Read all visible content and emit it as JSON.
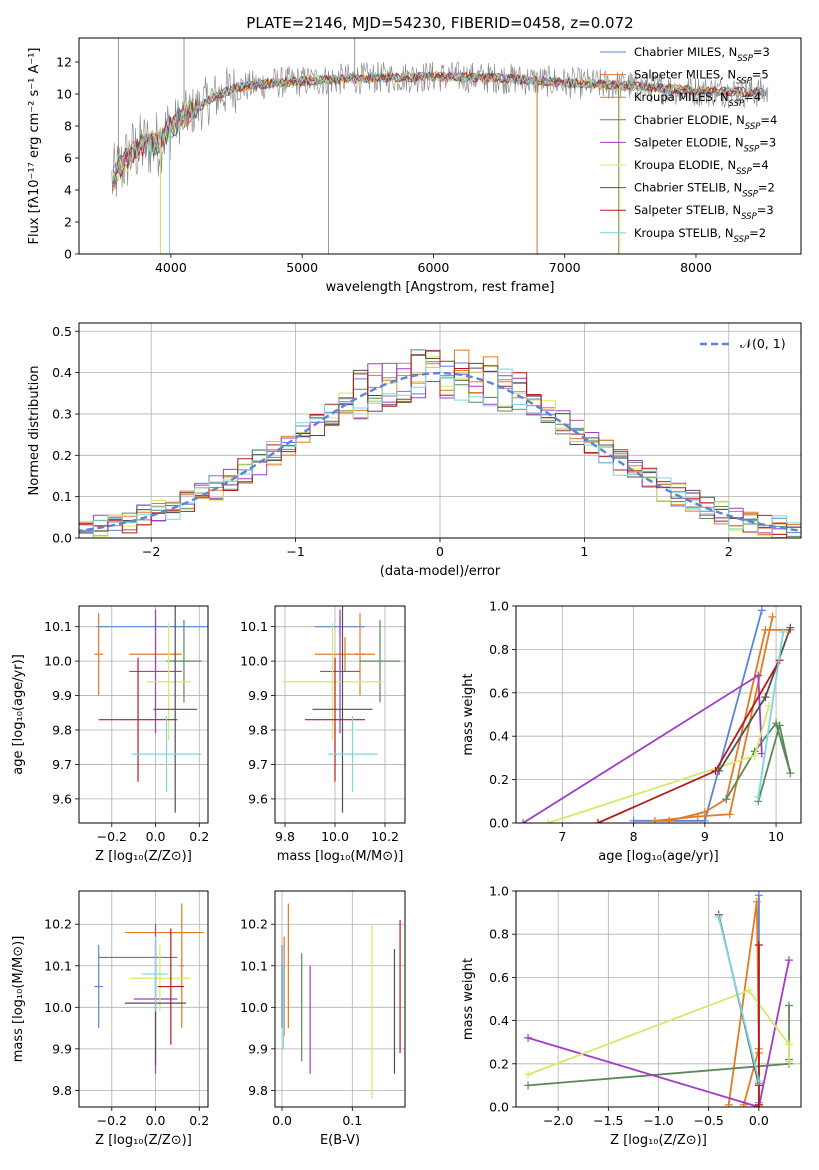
{
  "figure": {
    "title": "PLATE=2146, MJD=54230, FIBERID=0458, z=0.072"
  },
  "colors": {
    "models": [
      "#5b84d8",
      "#e07b24",
      "#e07b24",
      "#5a8a5a",
      "#a43bc6",
      "#d8e86a",
      "#505050",
      "#b61b1b",
      "#7fd6dc"
    ],
    "data_spectrum": "#808080",
    "gaussian": "#5b84d8",
    "grid": "#b0b0b0"
  },
  "chart_data": [
    {
      "id": "spectrum",
      "type": "line",
      "title": "PLATE=2146, MJD=54230, FIBERID=0458, z=0.072",
      "xlabel": "wavelength [Angstrom, rest frame]",
      "ylabel": "Flux [fλ10⁻¹⁷ erg cm⁻² s⁻¹ A⁻¹]",
      "xlim": [
        3300,
        8800
      ],
      "ylim": [
        0,
        13.5
      ],
      "xticks": [
        4000,
        5000,
        6000,
        7000,
        8000
      ],
      "yticks": [
        0,
        2,
        4,
        6,
        8,
        10,
        12
      ],
      "grid": false,
      "legend_position": "top-right",
      "continuum": {
        "x": [
          3550,
          3600,
          3700,
          3800,
          3900,
          4000,
          4100,
          4200,
          4300,
          4500,
          4800,
          5000,
          5500,
          6000,
          6500,
          7000,
          7500,
          8000,
          8500
        ],
        "y": [
          4.5,
          5.2,
          6.3,
          6.8,
          6.9,
          8.0,
          8.6,
          9.1,
          9.7,
          10.4,
          10.7,
          10.8,
          11.0,
          11.1,
          11.0,
          10.7,
          10.5,
          10.2,
          10.1
        ]
      },
      "legend": [
        "Chabrier MILES, N$_{SSP}$=3",
        "Salpeter MILES, N$_{SSP}$=5",
        "Kroupa MILES, N$_{SSP}$=4",
        "Chabrier ELODIE, N$_{SSP}$=4",
        "Salpeter ELODIE, N$_{SSP}$=3",
        "Kroupa ELODIE, N$_{SSP}$=4",
        "Chabrier STELIB, N$_{SSP}$=2",
        "Salpeter STELIB, N$_{SSP}$=3",
        "Kroupa STELIB, N$_{SSP}$=2"
      ]
    },
    {
      "id": "residuals",
      "type": "line",
      "xlabel": "(data-model)/error",
      "ylabel": "Normed distribution",
      "xlim": [
        -2.5,
        2.5
      ],
      "ylim": [
        0,
        0.52
      ],
      "xticks": [
        -2,
        -1,
        0,
        1,
        2
      ],
      "xticklabels": [
        "−2",
        "−1",
        "0",
        "1",
        "2"
      ],
      "yticks": [
        0.0,
        0.1,
        0.2,
        0.3,
        0.4,
        0.5
      ],
      "yticklabels": [
        "0.0",
        "0.1",
        "0.2",
        "0.3",
        "0.4",
        "0.5"
      ],
      "grid": true,
      "legend_position": "top-right",
      "gaussian_label": "𝒩(0, 1)",
      "bin_width": 0.1
    },
    {
      "id": "age_vs_Z",
      "type": "scatter",
      "xlabel": "Z [log₁₀(Z/Z⊙)]",
      "ylabel": "age  [log₁₀(age/yr)]",
      "xlim": [
        -0.35,
        0.24
      ],
      "ylim": [
        9.53,
        10.16
      ],
      "xticks": [
        -0.2,
        0.0,
        0.2
      ],
      "xticklabels": [
        "−0.2",
        "0.0",
        "0.2"
      ],
      "yticks": [
        9.6,
        9.7,
        9.8,
        9.9,
        10.0,
        10.1
      ],
      "yticklabels": [
        "9.6",
        "9.7",
        "9.8",
        "9.9",
        "10.0",
        "10.1"
      ],
      "grid": true,
      "points": [
        {
          "x": 0.0,
          "xerr": 0.27,
          "y": 10.1,
          "yerr": 0.03
        },
        {
          "x": -0.26,
          "xerr": 0.02,
          "y": 10.02,
          "yerr": 0.12
        },
        {
          "x": 0.0,
          "xerr": 0.12,
          "y": 10.02,
          "yerr": 0.05
        },
        {
          "x": 0.13,
          "xerr": 0.08,
          "y": 10.0,
          "yerr": 0.12
        },
        {
          "x": 0.0,
          "xerr": 0.12,
          "y": 9.97,
          "yerr": 0.18
        },
        {
          "x": 0.06,
          "xerr": 0.1,
          "y": 9.94,
          "yerr": 0.17
        },
        {
          "x": 0.09,
          "xerr": 0.1,
          "y": 9.86,
          "yerr": 0.3
        },
        {
          "x": -0.08,
          "xerr": 0.18,
          "y": 9.83,
          "yerr": 0.18
        },
        {
          "x": 0.05,
          "xerr": 0.16,
          "y": 9.73,
          "yerr": 0.11
        }
      ]
    },
    {
      "id": "age_vs_mass",
      "type": "scatter",
      "xlabel": "mass [log₁₀(M/M⊙)]",
      "xlim": [
        9.76,
        10.28
      ],
      "ylim": [
        9.53,
        10.16
      ],
      "xticks": [
        9.8,
        10.0,
        10.2
      ],
      "xticklabels": [
        "9.8",
        "10.0",
        "10.2"
      ],
      "yticks": [
        9.6,
        9.7,
        9.8,
        9.9,
        10.0,
        10.1
      ],
      "yticklabels": [
        "9.6",
        "9.7",
        "9.8",
        "9.9",
        "10.0",
        "10.1"
      ],
      "grid": true,
      "points": [
        {
          "x": 10.02,
          "xerr": 0.1,
          "y": 10.1,
          "yerr": 0.03
        },
        {
          "x": 10.1,
          "xerr": 0.02,
          "y": 10.02,
          "yerr": 0.12
        },
        {
          "x": 10.04,
          "xerr": 0.12,
          "y": 10.02,
          "yerr": 0.05
        },
        {
          "x": 10.18,
          "xerr": 0.08,
          "y": 10.0,
          "yerr": 0.12
        },
        {
          "x": 10.02,
          "xerr": 0.08,
          "y": 9.97,
          "yerr": 0.18
        },
        {
          "x": 9.99,
          "xerr": 0.2,
          "y": 9.94,
          "yerr": 0.17
        },
        {
          "x": 10.03,
          "xerr": 0.12,
          "y": 9.86,
          "yerr": 0.3
        },
        {
          "x": 10.0,
          "xerr": 0.12,
          "y": 9.83,
          "yerr": 0.18
        },
        {
          "x": 10.07,
          "xerr": 0.1,
          "y": 9.73,
          "yerr": 0.11
        }
      ]
    },
    {
      "id": "weight_vs_age",
      "type": "line",
      "xlabel": "age  [log₁₀(age/yr)]",
      "ylabel": "mass weight",
      "xlim": [
        6.35,
        10.35
      ],
      "ylim": [
        0,
        1.0
      ],
      "xticks": [
        7,
        8,
        9,
        10
      ],
      "yticks": [
        0.0,
        0.2,
        0.4,
        0.6,
        0.8,
        1.0
      ],
      "yticklabels": [
        "0.0",
        "0.2",
        "0.4",
        "0.6",
        "0.8",
        "1.0"
      ],
      "grid": true,
      "series": [
        {
          "x": [
            8.0,
            9.0,
            9.8
          ],
          "y": [
            0.01,
            0.01,
            0.98
          ]
        },
        {
          "x": [
            8.3,
            8.9,
            9.35,
            9.95
          ],
          "y": [
            0.01,
            0.03,
            0.04,
            0.95
          ]
        },
        {
          "x": [
            8.5,
            9.0,
            9.3,
            9.85,
            10.2
          ],
          "y": [
            0.01,
            0.05,
            0.11,
            0.89,
            0.89
          ]
        },
        {
          "x": [
            9.3,
            9.7,
            10.0,
            10.2,
            10.05,
            9.75
          ],
          "y": [
            0.11,
            0.33,
            0.46,
            0.23,
            0.45,
            0.1
          ]
        },
        {
          "x": [
            6.45,
            9.75,
            9.8
          ],
          "y": [
            0.0,
            0.68,
            0.32
          ]
        },
        {
          "x": [
            6.8,
            9.7,
            9.9
          ],
          "y": [
            0.0,
            0.31,
            0.54
          ]
        },
        {
          "x": [
            9.2,
            9.85,
            10.2
          ],
          "y": [
            0.24,
            0.58,
            0.9
          ]
        },
        {
          "x": [
            7.5,
            9.15,
            10.05
          ],
          "y": [
            0.0,
            0.24,
            0.75
          ]
        },
        {
          "x": [
            9.75,
            10.1
          ],
          "y": [
            0.12,
            0.88
          ]
        }
      ]
    },
    {
      "id": "mass_vs_Z",
      "type": "scatter",
      "xlabel": "Z [log₁₀(Z/Z⊙)]",
      "ylabel": "mass [log₁₀(M/M⊙)]",
      "xlim": [
        -0.35,
        0.24
      ],
      "ylim": [
        9.76,
        10.28
      ],
      "xticks": [
        -0.2,
        0.0,
        0.2
      ],
      "xticklabels": [
        "−0.2",
        "0.0",
        "0.2"
      ],
      "yticks": [
        9.8,
        9.9,
        10.0,
        10.1,
        10.2
      ],
      "yticklabels": [
        "9.8",
        "9.9",
        "10.0",
        "10.1",
        "10.2"
      ],
      "grid": true,
      "points": [
        {
          "x": -0.26,
          "xerr": 0.02,
          "y": 10.05,
          "yerr": 0.1
        },
        {
          "x": 0.04,
          "xerr": 0.18,
          "y": 10.18,
          "yerr": 0.0
        },
        {
          "x": 0.12,
          "xerr": 0.01,
          "y": 10.1,
          "yerr": 0.15
        },
        {
          "x": -0.08,
          "xerr": 0.18,
          "y": 10.12,
          "yerr": 0.0
        },
        {
          "x": 0.0,
          "xerr": 0.1,
          "y": 10.02,
          "yerr": 0.18
        },
        {
          "x": 0.02,
          "xerr": 0.14,
          "y": 10.07,
          "yerr": 0.08
        },
        {
          "x": 0.0,
          "xerr": 0.14,
          "y": 10.01,
          "yerr": 0.15
        },
        {
          "x": 0.07,
          "xerr": 0.06,
          "y": 10.05,
          "yerr": 0.14
        },
        {
          "x": 0.0,
          "xerr": 0.06,
          "y": 10.08,
          "yerr": 0.09
        }
      ]
    },
    {
      "id": "mass_vs_ebv",
      "type": "scatter",
      "xlabel": "E(B-V)",
      "xlim": [
        -0.01,
        0.175
      ],
      "ylim": [
        9.76,
        10.28
      ],
      "xticks": [
        0.0,
        0.1
      ],
      "xticklabels": [
        "0.0",
        "0.1"
      ],
      "yticks": [
        9.8,
        9.9,
        10.0,
        10.1,
        10.2
      ],
      "yticklabels": [
        "9.8",
        "9.9",
        "10.0",
        "10.1",
        "10.2"
      ],
      "grid": true,
      "points": [
        {
          "x": 0.0,
          "y": 10.05,
          "yerr": 0.1
        },
        {
          "x": 0.003,
          "y": 10.05,
          "yerr": 0.12
        },
        {
          "x": 0.009,
          "y": 10.1,
          "yerr": 0.15
        },
        {
          "x": 0.028,
          "y": 10.0,
          "yerr": 0.13
        },
        {
          "x": 0.04,
          "y": 9.97,
          "yerr": 0.13
        },
        {
          "x": 0.128,
          "y": 9.99,
          "yerr": 0.21
        },
        {
          "x": 0.16,
          "y": 9.99,
          "yerr": 0.15
        },
        {
          "x": 0.168,
          "y": 10.05,
          "yerr": 0.16
        },
        {
          "x": 0.002,
          "y": 10.0,
          "yerr": 0.1
        }
      ]
    },
    {
      "id": "weight_vs_Z",
      "type": "line",
      "xlabel": "Z [log₁₀(Z/Z⊙)]",
      "ylabel": "mass weight",
      "xlim": [
        -2.42,
        0.42
      ],
      "ylim": [
        0,
        1.0
      ],
      "xticks": [
        -2.0,
        -1.5,
        -1.0,
        -0.5,
        0.0
      ],
      "xticklabels": [
        "−2.0",
        "−1.5",
        "−1.0",
        "−0.5",
        "0.0"
      ],
      "yticks": [
        0.0,
        0.2,
        0.4,
        0.6,
        0.8,
        1.0
      ],
      "yticklabels": [
        "0.0",
        "0.2",
        "0.4",
        "0.6",
        "0.8",
        "1.0"
      ],
      "grid": true,
      "series": [
        {
          "x": [
            0.0,
            0.0,
            0.0
          ],
          "y": [
            0.1,
            0.98,
            0.02
          ]
        },
        {
          "x": [
            -0.3,
            -0.02,
            0.0,
            0.0
          ],
          "y": [
            0.01,
            0.95,
            0.25,
            0.01
          ]
        },
        {
          "x": [
            -0.15,
            0.0,
            0.0
          ],
          "y": [
            0.01,
            0.27,
            0.11
          ]
        },
        {
          "x": [
            -2.3,
            0.3,
            0.3,
            0.3
          ],
          "y": [
            0.1,
            0.2,
            0.47,
            0.22
          ]
        },
        {
          "x": [
            -2.3,
            0.0,
            0.3
          ],
          "y": [
            0.32,
            0.0,
            0.68
          ]
        },
        {
          "x": [
            -2.3,
            -0.1,
            0.3,
            0.3
          ],
          "y": [
            0.15,
            0.54,
            0.29,
            0.21
          ]
        },
        {
          "x": [
            -0.4,
            0.0
          ],
          "y": [
            0.89,
            0.1
          ]
        },
        {
          "x": [
            0.0,
            0.0
          ],
          "y": [
            0.75,
            0.01
          ]
        },
        {
          "x": [
            -0.4,
            0.0
          ],
          "y": [
            0.88,
            0.12
          ]
        }
      ]
    }
  ]
}
